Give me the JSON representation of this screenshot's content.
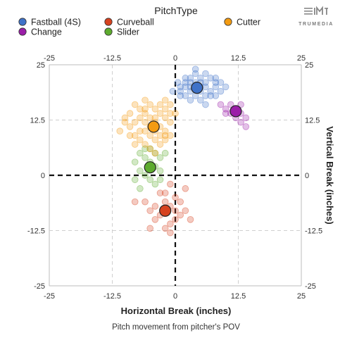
{
  "legend": {
    "title": "PitchType",
    "items": [
      {
        "label": "Fastball (4S)",
        "color": "#3f72c8"
      },
      {
        "label": "Change",
        "color": "#9b1ea8"
      },
      {
        "label": "Curveball",
        "color": "#d6421f"
      },
      {
        "label": "Slider",
        "color": "#5dab2e"
      },
      {
        "label": "Cutter",
        "color": "#f39b11"
      }
    ]
  },
  "logo": {
    "text": "TRUMEDIA"
  },
  "axes": {
    "xlabel": "Horizontal Break (inches)",
    "ylabel": "Vertical Break (inches)",
    "caption": "Pitch movement from pitcher's POV"
  },
  "chart_data": {
    "type": "scatter",
    "title": "",
    "xlabel": "Horizontal Break (inches)",
    "ylabel": "Vertical Break (inches)",
    "xlim": [
      -25,
      25
    ],
    "ylim": [
      -25,
      25
    ],
    "xticks": [
      "-25",
      "-12.5",
      "0",
      "12.5",
      "25"
    ],
    "yticks": [
      "25",
      "12.5",
      "0",
      "-12.5",
      "-25"
    ],
    "grid": true,
    "zero_lines": "dashed",
    "legend_placement": "top",
    "series": [
      {
        "name": "Fastball (4S)",
        "color": "#3f72c8",
        "mean": [
          4.3,
          19.8
        ],
        "points": [
          [
            1,
            20
          ],
          [
            2,
            21
          ],
          [
            3,
            22
          ],
          [
            4,
            23
          ],
          [
            5,
            21
          ],
          [
            6,
            20
          ],
          [
            7,
            19
          ],
          [
            8,
            21
          ],
          [
            2,
            18
          ],
          [
            3,
            19
          ],
          [
            4,
            18
          ],
          [
            5,
            17
          ],
          [
            6,
            18
          ],
          [
            7,
            22
          ],
          [
            8,
            20
          ],
          [
            9,
            19
          ],
          [
            1,
            19
          ],
          [
            0.5,
            21
          ],
          [
            3,
            20
          ],
          [
            5,
            22
          ],
          [
            6,
            23
          ],
          [
            4,
            21
          ],
          [
            2,
            20
          ],
          [
            7,
            18
          ],
          [
            8,
            18
          ],
          [
            9,
            21
          ],
          [
            10,
            20
          ],
          [
            3,
            17
          ],
          [
            1,
            18
          ],
          [
            5,
            19
          ],
          [
            6,
            21
          ],
          [
            4,
            24
          ],
          [
            2,
            22
          ],
          [
            8,
            22
          ],
          [
            -0.5,
            19
          ],
          [
            6,
            16
          ],
          [
            3,
            21
          ],
          [
            5,
            20
          ]
        ]
      },
      {
        "name": "Change",
        "color": "#9b1ea8",
        "mean": [
          12,
          14.5
        ],
        "points": [
          [
            9,
            16
          ],
          [
            10,
            15
          ],
          [
            11,
            16
          ],
          [
            12,
            15
          ],
          [
            13,
            14
          ],
          [
            14,
            13
          ],
          [
            13,
            12
          ],
          [
            14,
            11
          ],
          [
            11,
            14
          ],
          [
            12,
            13
          ],
          [
            10,
            14
          ],
          [
            13,
            16
          ]
        ]
      },
      {
        "name": "Curveball",
        "color": "#d6421f",
        "mean": [
          -2,
          -8
        ],
        "points": [
          [
            -3,
            -4
          ],
          [
            -2,
            -6
          ],
          [
            -1,
            -7
          ],
          [
            0,
            -8
          ],
          [
            1,
            -9
          ],
          [
            -4,
            -10
          ],
          [
            -5,
            -12
          ],
          [
            -2,
            -12
          ],
          [
            -1,
            -11
          ],
          [
            0,
            -5
          ],
          [
            2,
            -8
          ],
          [
            -6,
            -6
          ],
          [
            -3,
            -9
          ],
          [
            -2,
            -4
          ],
          [
            -1,
            -13
          ],
          [
            0,
            -10
          ],
          [
            3,
            -10
          ],
          [
            2,
            -3
          ],
          [
            -8,
            -6
          ],
          [
            -5,
            -8
          ],
          [
            -4,
            -7
          ],
          [
            1,
            -6
          ],
          [
            -1,
            -2
          ]
        ]
      },
      {
        "name": "Slider",
        "color": "#5dab2e",
        "mean": [
          -5,
          1.8
        ],
        "points": [
          [
            -7,
            5
          ],
          [
            -6,
            4
          ],
          [
            -5,
            3
          ],
          [
            -4,
            2
          ],
          [
            -3,
            1
          ],
          [
            -6,
            0
          ],
          [
            -5,
            -1
          ],
          [
            -4,
            -2
          ],
          [
            -8,
            -1
          ],
          [
            -7,
            -3
          ],
          [
            -3,
            4
          ],
          [
            -6,
            6
          ],
          [
            -5,
            2
          ],
          [
            -4,
            5
          ],
          [
            -8,
            3
          ],
          [
            -3,
            -1
          ],
          [
            -2,
            5
          ],
          [
            -7,
            1
          ],
          [
            -5,
            6
          ]
        ]
      },
      {
        "name": "Cutter",
        "color": "#f39b11",
        "mean": [
          -4.3,
          11
        ],
        "points": [
          [
            -7,
            15
          ],
          [
            -6,
            14
          ],
          [
            -5,
            13
          ],
          [
            -4,
            12
          ],
          [
            -3,
            11
          ],
          [
            -8,
            12
          ],
          [
            -9,
            11
          ],
          [
            -6,
            10
          ],
          [
            -5,
            9
          ],
          [
            -4,
            8
          ],
          [
            -3,
            14
          ],
          [
            -2,
            15
          ],
          [
            -1,
            16
          ],
          [
            0,
            14
          ],
          [
            -2,
            10
          ],
          [
            -7,
            8
          ],
          [
            -8,
            7
          ],
          [
            -6,
            7
          ],
          [
            -5,
            6
          ],
          [
            -4,
            5
          ],
          [
            -3,
            7
          ],
          [
            -2,
            9
          ],
          [
            -1,
            12
          ],
          [
            -9,
            14
          ],
          [
            -10,
            13
          ],
          [
            -8,
            16
          ],
          [
            -6,
            17
          ],
          [
            -4,
            15
          ],
          [
            -3,
            16
          ],
          [
            -1,
            9
          ],
          [
            -2,
            13
          ],
          [
            -5,
            11
          ],
          [
            -7,
            10
          ],
          [
            -9,
            9
          ],
          [
            -6,
            12
          ],
          [
            -4,
            10
          ],
          [
            -3,
            9
          ],
          [
            -2,
            8
          ],
          [
            -5,
            16
          ],
          [
            -8,
            9
          ],
          [
            -4,
            13
          ],
          [
            -1,
            14
          ],
          [
            -11,
            10
          ],
          [
            -10,
            12
          ],
          [
            -6,
            15
          ],
          [
            -2,
            17
          ],
          [
            -7,
            13
          ]
        ]
      }
    ]
  }
}
